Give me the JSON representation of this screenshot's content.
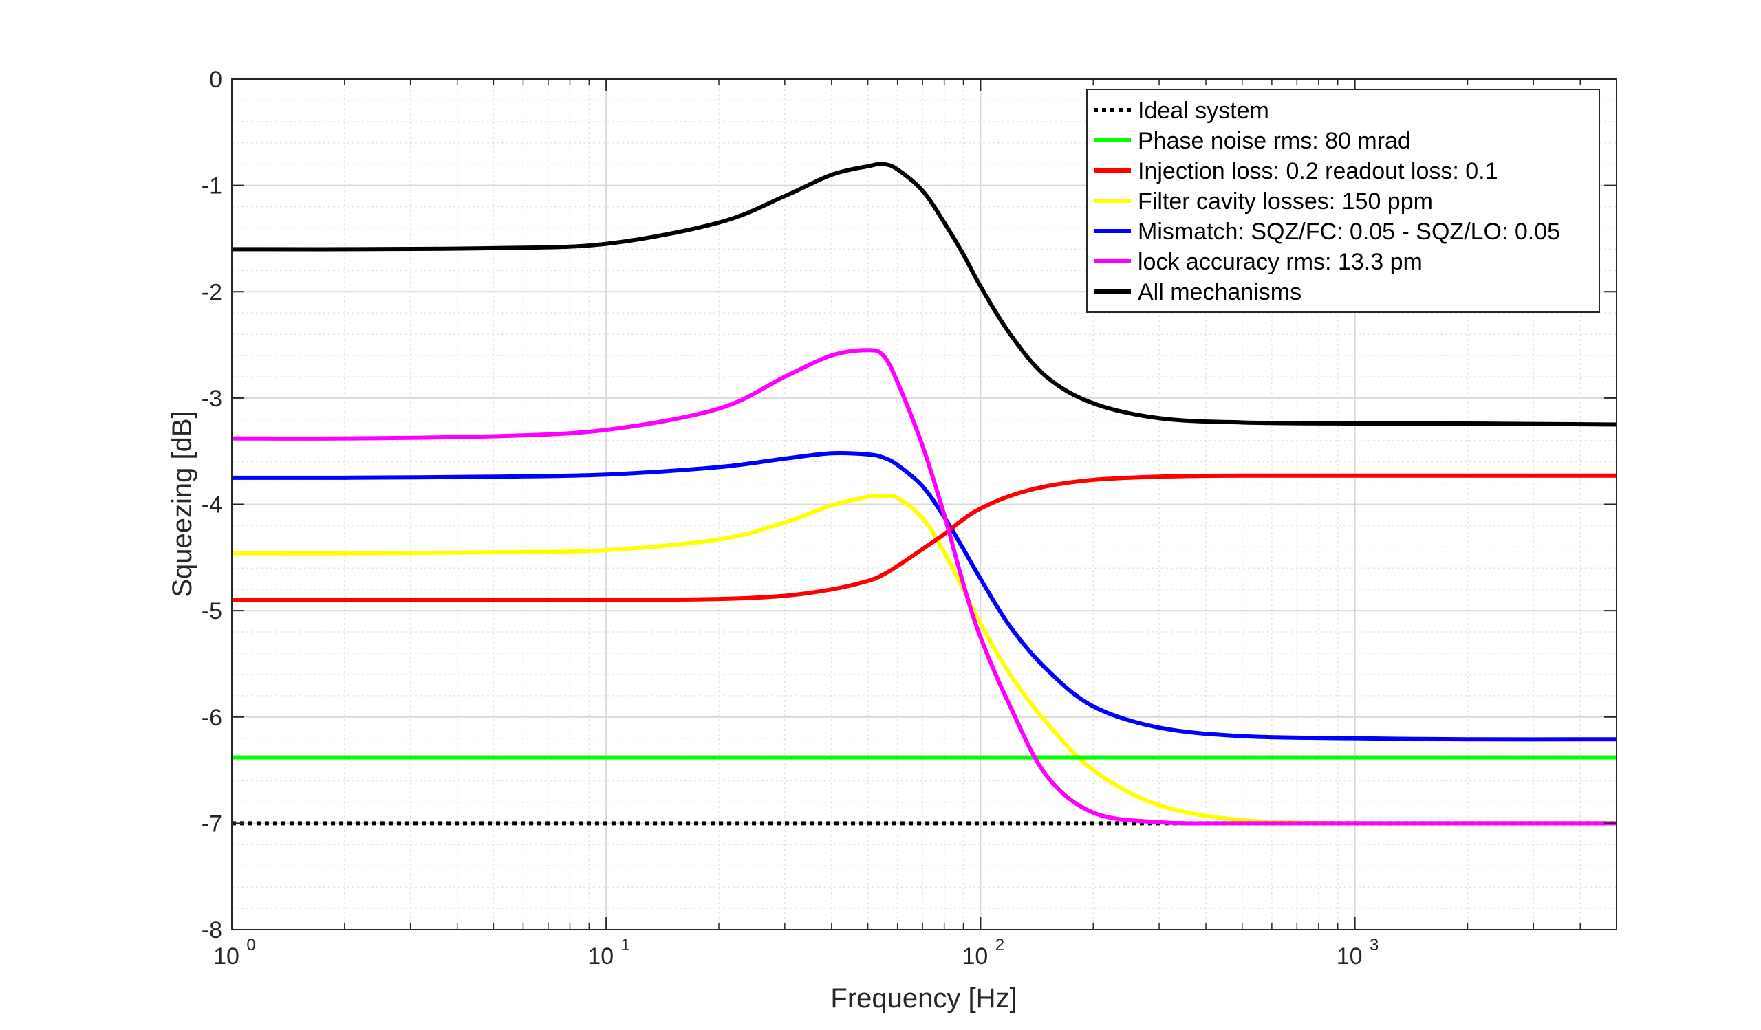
{
  "chart_data": {
    "type": "line",
    "title": "",
    "xlabel": "Frequency [Hz]",
    "ylabel": "Squeezing [dB]",
    "xscale": "log",
    "xlim": [
      1,
      5000
    ],
    "ylim": [
      -8,
      0
    ],
    "grid": true,
    "minor_grid": true,
    "legend_position": "top-right",
    "x_ticks": [
      {
        "base": "10",
        "exp": "0",
        "value": 1
      },
      {
        "base": "10",
        "exp": "1",
        "value": 10
      },
      {
        "base": "10",
        "exp": "2",
        "value": 100
      },
      {
        "base": "10",
        "exp": "3",
        "value": 1000
      }
    ],
    "y_ticks": [
      {
        "label": "0",
        "value": 0
      },
      {
        "label": "-1",
        "value": -1
      },
      {
        "label": "-2",
        "value": -2
      },
      {
        "label": "-3",
        "value": -3
      },
      {
        "label": "-4",
        "value": -4
      },
      {
        "label": "-5",
        "value": -5
      },
      {
        "label": "-6",
        "value": -6
      },
      {
        "label": "-7",
        "value": -7
      },
      {
        "label": "-8",
        "value": -8
      }
    ],
    "x": [
      1,
      2,
      5,
      10,
      20,
      30,
      40,
      50,
      55,
      60,
      70,
      80,
      90,
      100,
      120,
      150,
      200,
      300,
      500,
      1000,
      2000,
      5000
    ],
    "series": [
      {
        "name": "Ideal system",
        "color": "#000000",
        "style": "dotted",
        "values": [
          -7,
          -7,
          -7,
          -7,
          -7,
          -7,
          -7,
          -7,
          -7,
          -7,
          -7,
          -7,
          -7,
          -7,
          -7,
          -7,
          -7,
          -7,
          -7,
          -7,
          -7,
          -7
        ]
      },
      {
        "name": "Phase noise rms: 80 mrad",
        "color": "#00ff00",
        "style": "solid",
        "values": [
          -6.38,
          -6.38,
          -6.38,
          -6.38,
          -6.38,
          -6.38,
          -6.38,
          -6.38,
          -6.38,
          -6.38,
          -6.38,
          -6.38,
          -6.38,
          -6.38,
          -6.38,
          -6.38,
          -6.38,
          -6.38,
          -6.38,
          -6.38,
          -6.38,
          -6.38
        ]
      },
      {
        "name": "Injection loss: 0.2 readout loss: 0.1",
        "color": "#ff0000",
        "style": "solid",
        "values": [
          -4.9,
          -4.9,
          -4.9,
          -4.9,
          -4.89,
          -4.86,
          -4.8,
          -4.72,
          -4.66,
          -4.58,
          -4.42,
          -4.28,
          -4.14,
          -4.04,
          -3.92,
          -3.83,
          -3.77,
          -3.74,
          -3.73,
          -3.73,
          -3.73,
          -3.73
        ]
      },
      {
        "name": "Filter cavity losses: 150 ppm",
        "color": "#ffff00",
        "style": "solid",
        "values": [
          -4.46,
          -4.46,
          -4.45,
          -4.43,
          -4.33,
          -4.17,
          -4.01,
          -3.93,
          -3.92,
          -3.94,
          -4.13,
          -4.45,
          -4.8,
          -5.12,
          -5.6,
          -6.05,
          -6.5,
          -6.83,
          -6.97,
          -7,
          -7,
          -7
        ]
      },
      {
        "name": "Mismatch: SQZ/FC: 0.05 - SQZ/LO: 0.05",
        "color": "#0000ff",
        "style": "solid",
        "values": [
          -3.75,
          -3.75,
          -3.74,
          -3.72,
          -3.65,
          -3.57,
          -3.52,
          -3.53,
          -3.56,
          -3.63,
          -3.83,
          -4.12,
          -4.42,
          -4.7,
          -5.15,
          -5.55,
          -5.9,
          -6.1,
          -6.18,
          -6.2,
          -6.21,
          -6.21
        ]
      },
      {
        "name": "lock accuracy rms: 13.3 pm",
        "color": "#ff00ff",
        "style": "solid",
        "values": [
          -3.38,
          -3.38,
          -3.36,
          -3.3,
          -3.1,
          -2.8,
          -2.6,
          -2.55,
          -2.6,
          -2.85,
          -3.45,
          -4.1,
          -4.75,
          -5.25,
          -5.9,
          -6.55,
          -6.9,
          -6.99,
          -7,
          -7,
          -7,
          -7
        ]
      },
      {
        "name": "All mechanisms",
        "color": "#000000",
        "style": "solid",
        "values": [
          -1.6,
          -1.6,
          -1.59,
          -1.55,
          -1.35,
          -1.1,
          -0.9,
          -0.82,
          -0.8,
          -0.85,
          -1.05,
          -1.35,
          -1.65,
          -1.95,
          -2.4,
          -2.8,
          -3.05,
          -3.19,
          -3.23,
          -3.24,
          -3.24,
          -3.25
        ]
      }
    ]
  }
}
